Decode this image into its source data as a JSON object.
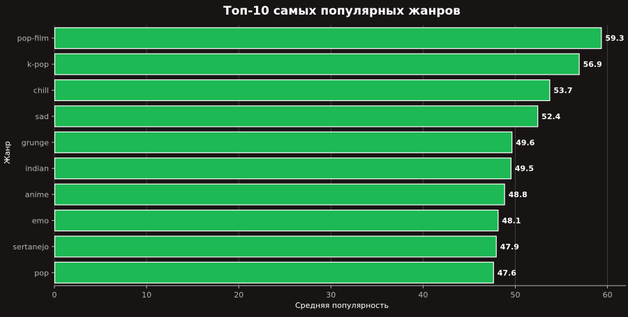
{
  "colors": {
    "background": "#191414",
    "bar_fill": "#1DB954",
    "bar_edge": "#FFFFFF",
    "text": "#FFFFFF",
    "tick_text": "#B3B3B3",
    "grid": "#5A5A5A"
  },
  "chart_data": {
    "type": "bar",
    "orientation": "horizontal",
    "title": "Топ-10 самых популярных жанров",
    "xlabel": "Средняя популярность",
    "ylabel": "Жанр",
    "categories": [
      "pop-film",
      "k-pop",
      "chill",
      "sad",
      "grunge",
      "indian",
      "anime",
      "emo",
      "sertanejo",
      "pop"
    ],
    "values": [
      59.3,
      56.9,
      53.7,
      52.4,
      49.6,
      49.5,
      48.8,
      48.1,
      47.9,
      47.6
    ],
    "value_labels": [
      "59.3",
      "56.9",
      "53.7",
      "52.4",
      "49.6",
      "49.5",
      "48.8",
      "48.1",
      "47.9",
      "47.6"
    ],
    "xlim": [
      0,
      62
    ],
    "xticks": [
      0,
      10,
      20,
      30,
      40,
      50,
      60
    ],
    "xtick_labels": [
      "0",
      "10",
      "20",
      "30",
      "40",
      "50",
      "60"
    ],
    "grid": "x"
  }
}
